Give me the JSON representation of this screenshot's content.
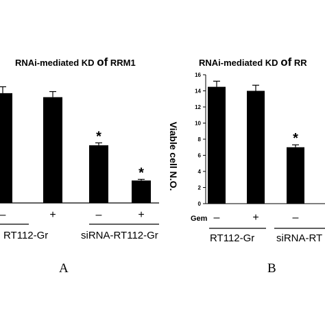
{
  "chart_data": [
    {
      "type": "bar",
      "panel": "A",
      "title": "RNAi-mediated KD of RRM1",
      "title_parts": [
        "RNAi-mediated KD ",
        "of",
        " RRM1"
      ],
      "categories": [
        "RT112-Gr −",
        "RT112-Gr +",
        "siRNA-RT112-Gr −",
        "siRNA-RT112-Gr +"
      ],
      "treatment_labels": [
        "–",
        "+",
        "–",
        "+"
      ],
      "group_labels": [
        "RT112-Gr",
        "siRNA-RT112-Gr"
      ],
      "values": [
        13.7,
        13.2,
        7.2,
        2.8
      ],
      "errors": [
        0.8,
        0.7,
        0.3,
        0.15
      ],
      "significance": [
        "",
        "",
        "*",
        "*"
      ],
      "ylim": [
        0,
        16
      ],
      "bar_color": "#000000"
    },
    {
      "type": "bar",
      "panel": "B",
      "title": "RNAi-mediated KD of RR",
      "title_parts": [
        "RNAi-mediated KD ",
        "of",
        " RR"
      ],
      "ylabel": "Viable cell N.O.",
      "row_label": "Gem",
      "categories": [
        "RT112-Gr −",
        "RT112-Gr +",
        "siRNA-RT −"
      ],
      "treatment_labels": [
        "–",
        "+",
        "–"
      ],
      "group_labels": [
        "RT112-Gr",
        "siRNA-RT"
      ],
      "values": [
        14.5,
        14.0,
        7.0
      ],
      "errors": [
        0.7,
        0.7,
        0.3
      ],
      "significance": [
        "",
        "",
        "*"
      ],
      "ylim": [
        0,
        16
      ],
      "yticks": [
        "0",
        "2",
        "4",
        "6",
        "8",
        "10",
        "12",
        "14",
        "16"
      ],
      "bar_color": "#000000"
    }
  ]
}
